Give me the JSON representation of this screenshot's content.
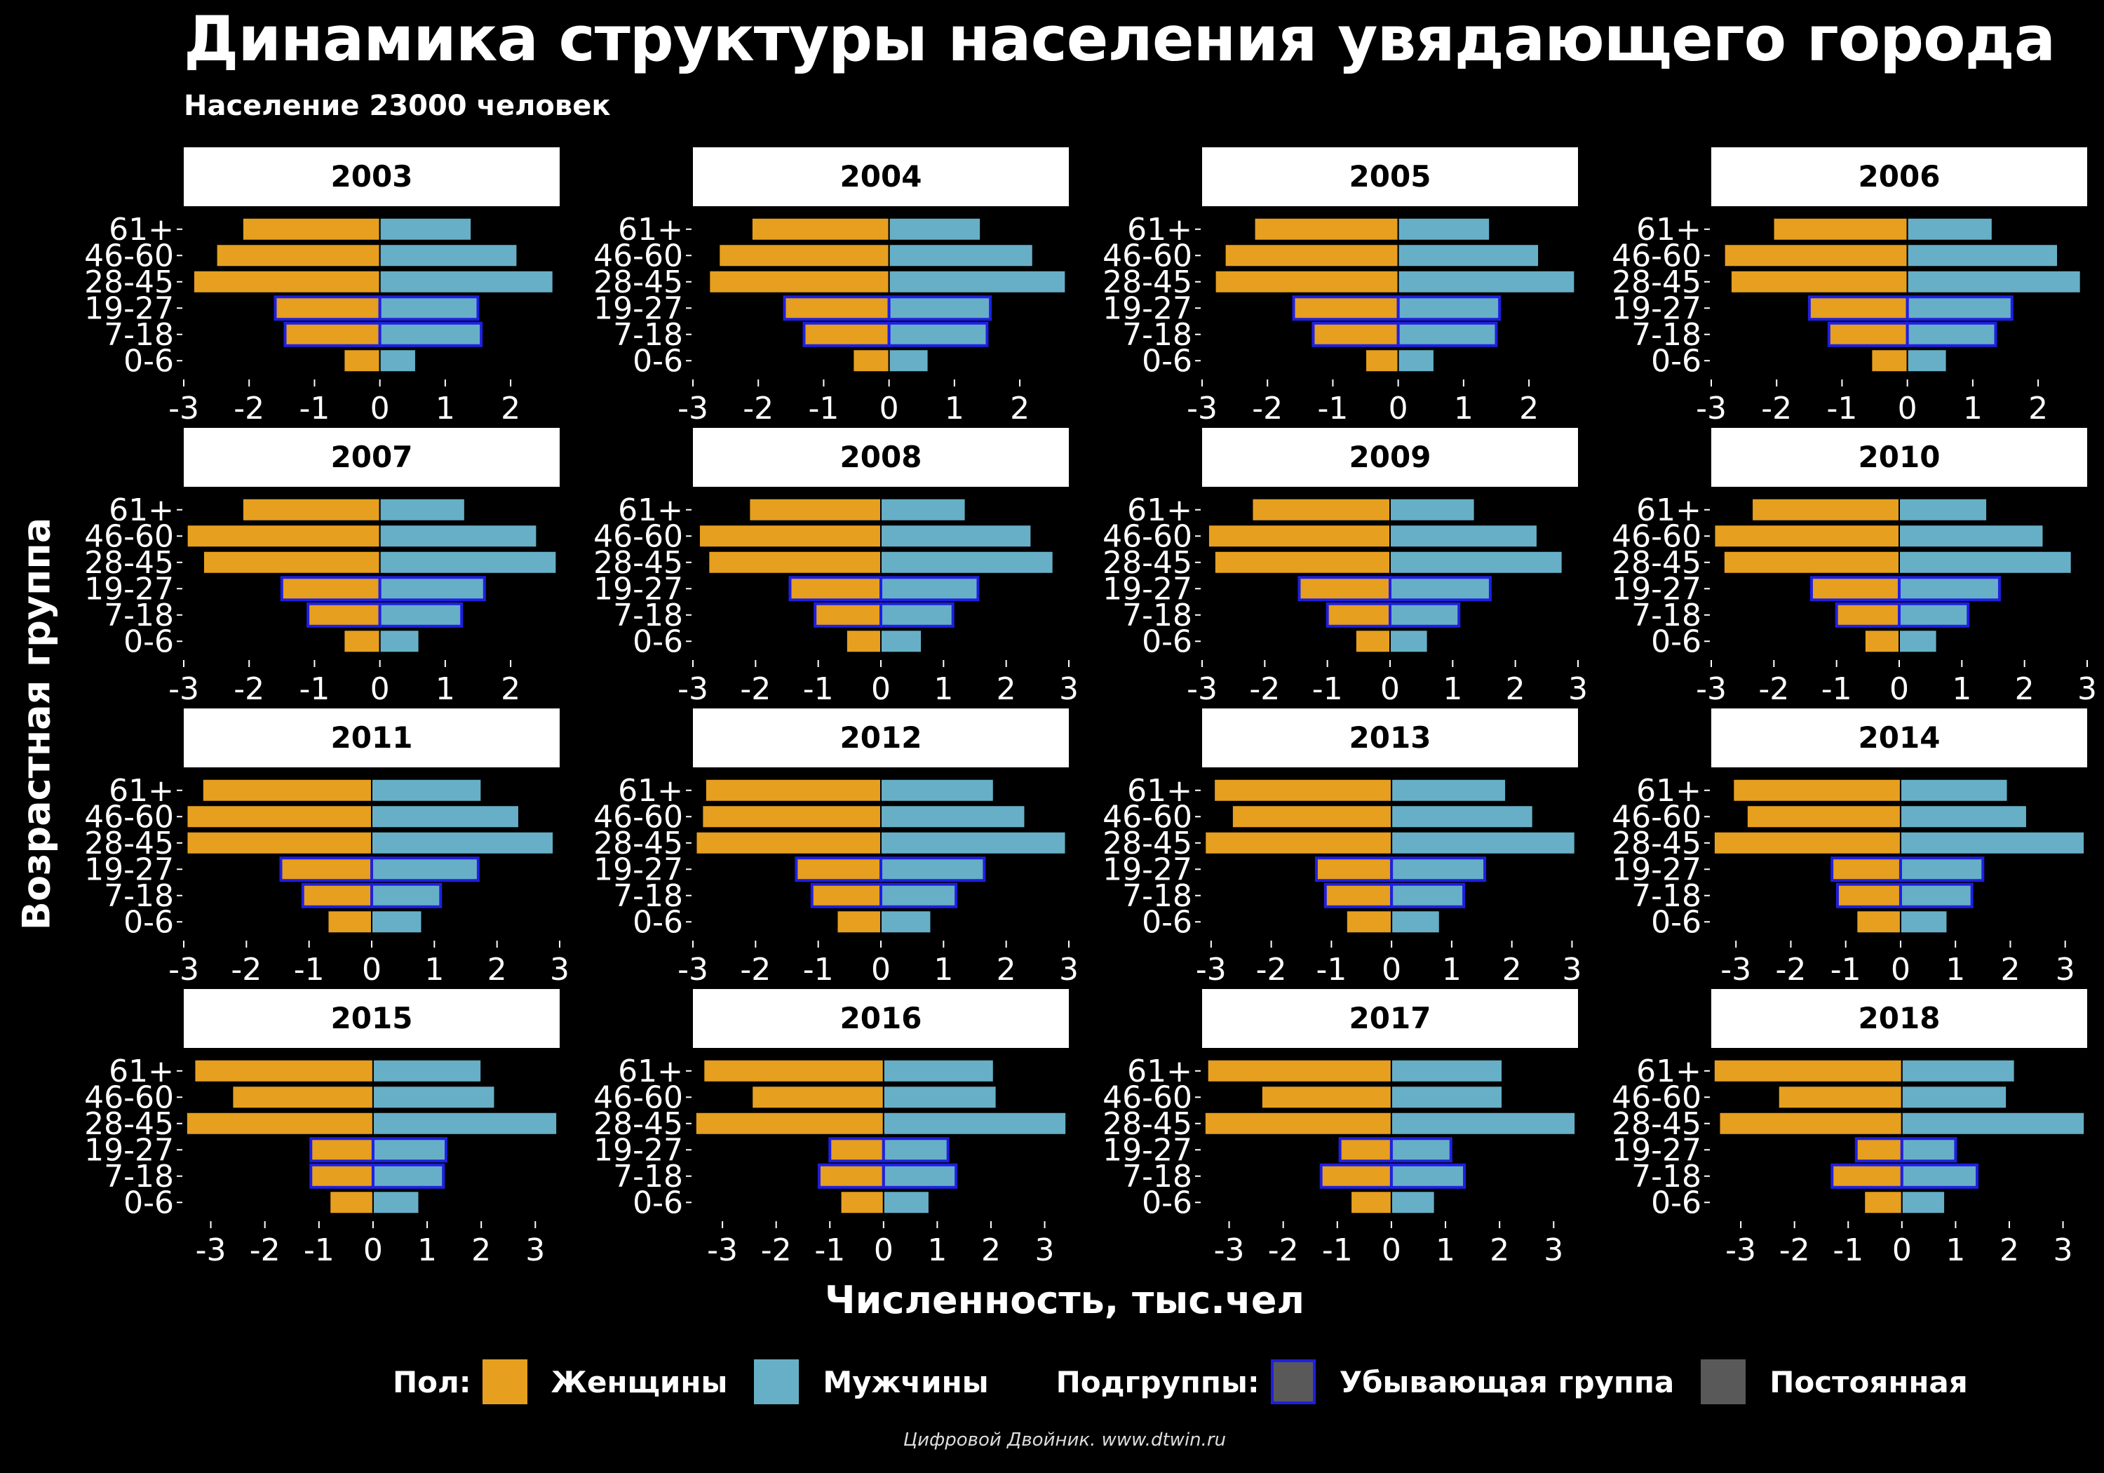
{
  "title": "Динамика структуры населения увядающего города",
  "subtitle": "Население 23000 человек",
  "colors": {
    "background": "#000000",
    "female": "#E69F1F",
    "male": "#67AFC7",
    "decreasing_outline": "#1F1FE0",
    "strip_background": "#FFFFFF",
    "text": "#FFFFFF",
    "constant_key": "#595959"
  },
  "legend": {
    "sex_title": "Пол:",
    "female_label": "Женщины",
    "male_label": "Мужчины",
    "subgroup_title": "Подгруппы:",
    "decreasing_label": "Убывающая группа",
    "constant_label": "Постоянная"
  },
  "caption": "Цифровой Двойник. www.dtwin.ru",
  "chart_data": {
    "type": "bar",
    "orientation": "horizontal",
    "layout": "faceted population pyramids (4 x 4)",
    "xlabel": "Численность, тыс.чел",
    "ylabel": "Возрастная группа",
    "age_groups": [
      "0-6",
      "7-18",
      "19-27",
      "28-45",
      "46-60",
      "61+"
    ],
    "decreasing_groups": [
      "7-18",
      "19-27"
    ],
    "note_values": "female values are plotted to the left of zero (negative x), male values to the right",
    "panels": [
      {
        "year": "2003",
        "xlim": [
          -3,
          2.75
        ],
        "ticks": [
          -3,
          -2,
          -1,
          0,
          1,
          2
        ],
        "female": [
          0.55,
          1.45,
          1.6,
          2.85,
          2.5,
          2.1
        ],
        "male": [
          0.55,
          1.55,
          1.5,
          2.65,
          2.1,
          1.4
        ]
      },
      {
        "year": "2004",
        "xlim": [
          -3,
          2.75
        ],
        "ticks": [
          -3,
          -2,
          -1,
          0,
          1,
          2
        ],
        "female": [
          0.55,
          1.3,
          1.6,
          2.75,
          2.6,
          2.1
        ],
        "male": [
          0.6,
          1.5,
          1.55,
          2.7,
          2.2,
          1.4
        ]
      },
      {
        "year": "2005",
        "xlim": [
          -3,
          2.75
        ],
        "ticks": [
          -3,
          -2,
          -1,
          0,
          1,
          2
        ],
        "female": [
          0.5,
          1.3,
          1.6,
          2.8,
          2.65,
          2.2
        ],
        "male": [
          0.55,
          1.5,
          1.55,
          2.7,
          2.15,
          1.4
        ]
      },
      {
        "year": "2006",
        "xlim": [
          -3,
          2.75
        ],
        "ticks": [
          -3,
          -2,
          -1,
          0,
          1,
          2
        ],
        "female": [
          0.55,
          1.2,
          1.5,
          2.7,
          2.8,
          2.05
        ],
        "male": [
          0.6,
          1.35,
          1.6,
          2.65,
          2.3,
          1.3
        ]
      },
      {
        "year": "2007",
        "xlim": [
          -3,
          2.75
        ],
        "ticks": [
          -3,
          -2,
          -1,
          0,
          1,
          2
        ],
        "female": [
          0.55,
          1.1,
          1.5,
          2.7,
          2.95,
          2.1
        ],
        "male": [
          0.6,
          1.25,
          1.6,
          2.7,
          2.4,
          1.3
        ]
      },
      {
        "year": "2008",
        "xlim": [
          -3,
          3
        ],
        "ticks": [
          -3,
          -2,
          -1,
          0,
          1,
          2,
          3
        ],
        "female": [
          0.55,
          1.05,
          1.45,
          2.75,
          2.9,
          2.1
        ],
        "male": [
          0.65,
          1.15,
          1.55,
          2.75,
          2.4,
          1.35
        ]
      },
      {
        "year": "2009",
        "xlim": [
          -3,
          3
        ],
        "ticks": [
          -3,
          -2,
          -1,
          0,
          1,
          2,
          3
        ],
        "female": [
          0.55,
          1.0,
          1.45,
          2.8,
          2.9,
          2.2
        ],
        "male": [
          0.6,
          1.1,
          1.6,
          2.75,
          2.35,
          1.35
        ]
      },
      {
        "year": "2010",
        "xlim": [
          -3,
          3
        ],
        "ticks": [
          -3,
          -2,
          -1,
          0,
          1,
          2,
          3
        ],
        "female": [
          0.55,
          1.0,
          1.4,
          2.8,
          2.95,
          2.35
        ],
        "male": [
          0.6,
          1.1,
          1.6,
          2.75,
          2.3,
          1.4
        ]
      },
      {
        "year": "2011",
        "xlim": [
          -3,
          3
        ],
        "ticks": [
          -3,
          -2,
          -1,
          0,
          1,
          2,
          3
        ],
        "female": [
          0.7,
          1.1,
          1.45,
          2.95,
          2.95,
          2.7
        ],
        "male": [
          0.8,
          1.1,
          1.7,
          2.9,
          2.35,
          1.75
        ]
      },
      {
        "year": "2012",
        "xlim": [
          -3,
          3
        ],
        "ticks": [
          -3,
          -2,
          -1,
          0,
          1,
          2,
          3
        ],
        "female": [
          0.7,
          1.1,
          1.35,
          2.95,
          2.85,
          2.8
        ],
        "male": [
          0.8,
          1.2,
          1.65,
          2.95,
          2.3,
          1.8
        ]
      },
      {
        "year": "2013",
        "xlim": [
          -3,
          3
        ],
        "ticks": [
          -3,
          -2,
          -1,
          0,
          1,
          2,
          3
        ],
        "female": [
          0.75,
          1.1,
          1.25,
          3.1,
          2.65,
          2.95
        ],
        "male": [
          0.8,
          1.2,
          1.55,
          3.05,
          2.35,
          1.9
        ]
      },
      {
        "year": "2014",
        "xlim": [
          -3,
          3
        ],
        "ticks": [
          -3,
          -2,
          -1,
          0,
          1,
          2,
          3
        ],
        "female": [
          0.8,
          1.15,
          1.25,
          3.4,
          2.8,
          3.05
        ],
        "male": [
          0.85,
          1.3,
          1.5,
          3.35,
          2.3,
          1.95
        ]
      },
      {
        "year": "2015",
        "xlim": [
          -3,
          3
        ],
        "ticks": [
          -3,
          -2,
          -1,
          0,
          1,
          2,
          3
        ],
        "female": [
          0.8,
          1.15,
          1.15,
          3.45,
          2.6,
          3.3
        ],
        "male": [
          0.85,
          1.3,
          1.35,
          3.4,
          2.25,
          2.0
        ]
      },
      {
        "year": "2016",
        "xlim": [
          -3,
          3
        ],
        "ticks": [
          -3,
          -2,
          -1,
          0,
          1,
          2,
          3
        ],
        "female": [
          0.8,
          1.2,
          1.0,
          3.5,
          2.45,
          3.35
        ],
        "male": [
          0.85,
          1.35,
          1.2,
          3.4,
          2.1,
          2.05
        ]
      },
      {
        "year": "2017",
        "xlim": [
          -3,
          3
        ],
        "ticks": [
          -3,
          -2,
          -1,
          0,
          1,
          2,
          3
        ],
        "female": [
          0.75,
          1.3,
          0.95,
          3.45,
          2.4,
          3.4
        ],
        "male": [
          0.8,
          1.35,
          1.1,
          3.4,
          2.05,
          2.05
        ]
      },
      {
        "year": "2018",
        "xlim": [
          -3,
          3
        ],
        "ticks": [
          -3,
          -2,
          -1,
          0,
          1,
          2,
          3
        ],
        "female": [
          0.7,
          1.3,
          0.85,
          3.4,
          2.3,
          3.5
        ],
        "male": [
          0.8,
          1.4,
          1.0,
          3.4,
          1.95,
          2.1
        ]
      }
    ]
  }
}
